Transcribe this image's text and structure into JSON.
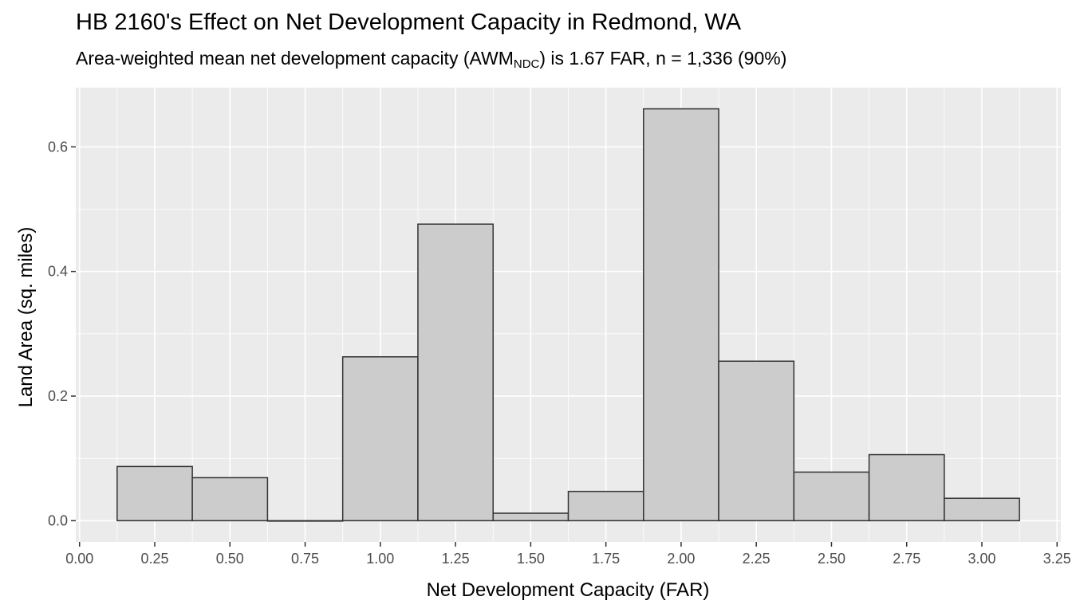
{
  "chart_data": {
    "type": "bar",
    "title": "HB 2160's Effect on Net Development Capacity in Redmond, WA",
    "subtitle": {
      "before": "Area-weighted mean net development capacity (AWM",
      "sub": "NDC",
      "after": ") is 1.67 FAR, n = 1,336 (90%)"
    },
    "xlabel": "Net Development Capacity (FAR)",
    "ylabel": "Land Area (sq. miles)",
    "xlim": [
      -0.0125,
      3.2625
    ],
    "ylim": [
      -0.034,
      0.695
    ],
    "x_ticks": [
      0,
      0.25,
      0.5,
      0.75,
      1,
      1.25,
      1.5,
      1.75,
      2,
      2.25,
      2.5,
      2.75,
      3,
      3.25
    ],
    "x_tick_labels": [
      "0.00",
      "0.25",
      "0.50",
      "0.75",
      "1.00",
      "1.25",
      "1.50",
      "1.75",
      "2.00",
      "2.25",
      "2.50",
      "2.75",
      "3.00",
      "3.25"
    ],
    "y_ticks": [
      0,
      0.2,
      0.4,
      0.6
    ],
    "y_tick_labels": [
      "0.0",
      "0.2",
      "0.4",
      "0.6"
    ],
    "bin_width": 0.25,
    "bins": [
      {
        "center": 0.25,
        "value": 0.087
      },
      {
        "center": 0.5,
        "value": 0.069
      },
      {
        "center": 0.75,
        "value": 0.0
      },
      {
        "center": 1.0,
        "value": 0.263
      },
      {
        "center": 1.25,
        "value": 0.476
      },
      {
        "center": 1.5,
        "value": 0.012
      },
      {
        "center": 1.75,
        "value": 0.047
      },
      {
        "center": 2.0,
        "value": 0.661
      },
      {
        "center": 2.25,
        "value": 0.256
      },
      {
        "center": 2.5,
        "value": 0.078
      },
      {
        "center": 2.75,
        "value": 0.106
      },
      {
        "center": 3.0,
        "value": 0.036
      }
    ],
    "grid": true,
    "colors": {
      "panel": "#ebebeb",
      "grid_major": "#ffffff",
      "bar_fill": "#cccccc",
      "bar_stroke": "#333333",
      "tick_text": "#4d4d4d"
    }
  }
}
